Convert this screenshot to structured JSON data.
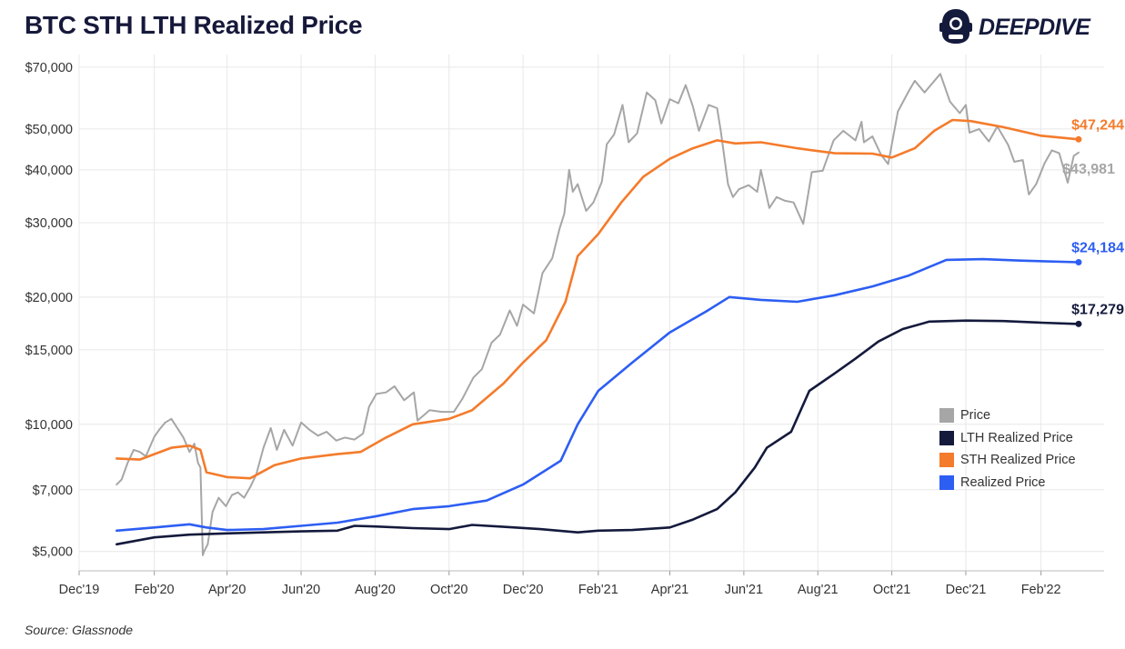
{
  "header": {
    "title": "BTC STH LTH Realized Price"
  },
  "logo": {
    "text": "DEEPDIVE",
    "icon": "diver-helmet-icon"
  },
  "footer": {
    "source": "Source: Glassnode"
  },
  "colors": {
    "price": "#a6a6a6",
    "lth": "#141a3c",
    "sth": "#f47b2b",
    "realized": "#2d5ef3",
    "grid": "#e8e8e8"
  },
  "chart_data": {
    "type": "line",
    "title": "BTC STH LTH Realized Price",
    "y_scale": "log",
    "ylim": [
      4500,
      75000
    ],
    "xlim": [
      "2019-12-01",
      "2022-03-25"
    ],
    "grid": true,
    "legend_position": "right",
    "y_ticks": [
      {
        "value": 5000,
        "label": "$5,000"
      },
      {
        "value": 7000,
        "label": "$7,000"
      },
      {
        "value": 10000,
        "label": "$10,000"
      },
      {
        "value": 15000,
        "label": "$15,000"
      },
      {
        "value": 20000,
        "label": "$20,000"
      },
      {
        "value": 30000,
        "label": "$30,000"
      },
      {
        "value": 40000,
        "label": "$40,000"
      },
      {
        "value": 50000,
        "label": "$50,000"
      },
      {
        "value": 70000,
        "label": "$70,000"
      }
    ],
    "x_ticks": [
      {
        "date": "2019-12-01",
        "label": "Dec'19"
      },
      {
        "date": "2020-02-01",
        "label": "Feb'20"
      },
      {
        "date": "2020-04-01",
        "label": "Apr'20"
      },
      {
        "date": "2020-06-01",
        "label": "Jun'20"
      },
      {
        "date": "2020-08-01",
        "label": "Aug'20"
      },
      {
        "date": "2020-10-01",
        "label": "Oct'20"
      },
      {
        "date": "2020-12-01",
        "label": "Dec'20"
      },
      {
        "date": "2021-02-01",
        "label": "Feb'21"
      },
      {
        "date": "2021-04-01",
        "label": "Apr'21"
      },
      {
        "date": "2021-06-01",
        "label": "Jun'21"
      },
      {
        "date": "2021-08-01",
        "label": "Aug'21"
      },
      {
        "date": "2021-10-01",
        "label": "Oct'21"
      },
      {
        "date": "2021-12-01",
        "label": "Dec'21"
      },
      {
        "date": "2022-02-01",
        "label": "Feb'22"
      }
    ],
    "series": [
      {
        "name": "Price",
        "color": "#a6a6a6",
        "end_label": "$43,981",
        "points": [
          [
            "2020-01-01",
            7200
          ],
          [
            "2020-01-05",
            7400
          ],
          [
            "2020-01-10",
            8100
          ],
          [
            "2020-01-15",
            8700
          ],
          [
            "2020-01-20",
            8600
          ],
          [
            "2020-01-25",
            8400
          ],
          [
            "2020-02-01",
            9350
          ],
          [
            "2020-02-05",
            9700
          ],
          [
            "2020-02-10",
            10100
          ],
          [
            "2020-02-15",
            10300
          ],
          [
            "2020-02-20",
            9800
          ],
          [
            "2020-02-25",
            9300
          ],
          [
            "2020-03-01",
            8600
          ],
          [
            "2020-03-05",
            9000
          ],
          [
            "2020-03-08",
            8100
          ],
          [
            "2020-03-10",
            7900
          ],
          [
            "2020-03-12",
            4900
          ],
          [
            "2020-03-13",
            5000
          ],
          [
            "2020-03-16",
            5200
          ],
          [
            "2020-03-20",
            6200
          ],
          [
            "2020-03-25",
            6700
          ],
          [
            "2020-03-31",
            6400
          ],
          [
            "2020-04-05",
            6800
          ],
          [
            "2020-04-10",
            6900
          ],
          [
            "2020-04-15",
            6700
          ],
          [
            "2020-04-20",
            7100
          ],
          [
            "2020-04-25",
            7600
          ],
          [
            "2020-05-01",
            8800
          ],
          [
            "2020-05-07",
            9800
          ],
          [
            "2020-05-12",
            8700
          ],
          [
            "2020-05-18",
            9700
          ],
          [
            "2020-05-25",
            8900
          ],
          [
            "2020-06-01",
            10100
          ],
          [
            "2020-06-08",
            9700
          ],
          [
            "2020-06-15",
            9400
          ],
          [
            "2020-06-22",
            9600
          ],
          [
            "2020-06-30",
            9150
          ],
          [
            "2020-07-07",
            9300
          ],
          [
            "2020-07-15",
            9200
          ],
          [
            "2020-07-22",
            9500
          ],
          [
            "2020-07-27",
            11000
          ],
          [
            "2020-08-02",
            11800
          ],
          [
            "2020-08-10",
            11900
          ],
          [
            "2020-08-17",
            12300
          ],
          [
            "2020-08-25",
            11400
          ],
          [
            "2020-09-02",
            11900
          ],
          [
            "2020-09-05",
            10200
          ],
          [
            "2020-09-15",
            10800
          ],
          [
            "2020-09-25",
            10700
          ],
          [
            "2020-10-05",
            10700
          ],
          [
            "2020-10-12",
            11500
          ],
          [
            "2020-10-21",
            12900
          ],
          [
            "2020-10-28",
            13500
          ],
          [
            "2020-11-05",
            15600
          ],
          [
            "2020-11-12",
            16300
          ],
          [
            "2020-11-20",
            18600
          ],
          [
            "2020-11-26",
            17100
          ],
          [
            "2020-12-01",
            19200
          ],
          [
            "2020-12-10",
            18300
          ],
          [
            "2020-12-17",
            22800
          ],
          [
            "2020-12-25",
            24700
          ],
          [
            "2020-12-31",
            29000
          ],
          [
            "2021-01-04",
            31500
          ],
          [
            "2021-01-08",
            40000
          ],
          [
            "2021-01-11",
            35500
          ],
          [
            "2021-01-15",
            37000
          ],
          [
            "2021-01-22",
            32000
          ],
          [
            "2021-01-28",
            33500
          ],
          [
            "2021-02-04",
            37500
          ],
          [
            "2021-02-08",
            46000
          ],
          [
            "2021-02-14",
            48500
          ],
          [
            "2021-02-21",
            57000
          ],
          [
            "2021-02-26",
            46500
          ],
          [
            "2021-03-05",
            48800
          ],
          [
            "2021-03-13",
            61000
          ],
          [
            "2021-03-20",
            58500
          ],
          [
            "2021-03-25",
            51500
          ],
          [
            "2021-04-01",
            58800
          ],
          [
            "2021-04-08",
            57500
          ],
          [
            "2021-04-14",
            63500
          ],
          [
            "2021-04-20",
            56500
          ],
          [
            "2021-04-25",
            49500
          ],
          [
            "2021-05-03",
            57000
          ],
          [
            "2021-05-10",
            56000
          ],
          [
            "2021-05-13",
            49500
          ],
          [
            "2021-05-19",
            37000
          ],
          [
            "2021-05-23",
            34500
          ],
          [
            "2021-05-28",
            36000
          ],
          [
            "2021-06-05",
            36800
          ],
          [
            "2021-06-12",
            35500
          ],
          [
            "2021-06-15",
            40000
          ],
          [
            "2021-06-22",
            32500
          ],
          [
            "2021-06-28",
            34500
          ],
          [
            "2021-07-05",
            33800
          ],
          [
            "2021-07-12",
            33500
          ],
          [
            "2021-07-20",
            29800
          ],
          [
            "2021-07-27",
            39500
          ],
          [
            "2021-08-05",
            39800
          ],
          [
            "2021-08-14",
            47000
          ],
          [
            "2021-08-22",
            49500
          ],
          [
            "2021-09-01",
            47000
          ],
          [
            "2021-09-06",
            52000
          ],
          [
            "2021-09-08",
            46500
          ],
          [
            "2021-09-15",
            48000
          ],
          [
            "2021-09-22",
            43500
          ],
          [
            "2021-09-28",
            41300
          ],
          [
            "2021-10-06",
            55000
          ],
          [
            "2021-10-15",
            61500
          ],
          [
            "2021-10-20",
            65000
          ],
          [
            "2021-10-28",
            61000
          ],
          [
            "2021-11-08",
            66500
          ],
          [
            "2021-11-10",
            67500
          ],
          [
            "2021-11-18",
            58000
          ],
          [
            "2021-11-26",
            54500
          ],
          [
            "2021-12-01",
            57000
          ],
          [
            "2021-12-04",
            49000
          ],
          [
            "2021-12-12",
            50000
          ],
          [
            "2021-12-20",
            46700
          ],
          [
            "2021-12-27",
            50700
          ],
          [
            "2022-01-05",
            45800
          ],
          [
            "2022-01-10",
            41800
          ],
          [
            "2022-01-17",
            42200
          ],
          [
            "2022-01-22",
            35000
          ],
          [
            "2022-01-28",
            37000
          ],
          [
            "2022-02-04",
            41500
          ],
          [
            "2022-02-10",
            44500
          ],
          [
            "2022-02-16",
            43800
          ],
          [
            "2022-02-23",
            37300
          ],
          [
            "2022-02-28",
            43200
          ],
          [
            "2022-03-04",
            43981
          ]
        ]
      },
      {
        "name": "LTH Realized Price",
        "color": "#141a3c",
        "end_label": "$17,279",
        "points": [
          [
            "2020-01-01",
            5200
          ],
          [
            "2020-02-01",
            5400
          ],
          [
            "2020-03-01",
            5480
          ],
          [
            "2020-04-01",
            5520
          ],
          [
            "2020-05-01",
            5550
          ],
          [
            "2020-06-01",
            5580
          ],
          [
            "2020-07-01",
            5600
          ],
          [
            "2020-07-15",
            5750
          ],
          [
            "2020-08-01",
            5730
          ],
          [
            "2020-09-01",
            5680
          ],
          [
            "2020-10-01",
            5650
          ],
          [
            "2020-10-20",
            5780
          ],
          [
            "2020-11-15",
            5720
          ],
          [
            "2020-12-15",
            5650
          ],
          [
            "2021-01-15",
            5550
          ],
          [
            "2021-02-01",
            5600
          ],
          [
            "2021-03-01",
            5620
          ],
          [
            "2021-04-01",
            5700
          ],
          [
            "2021-04-20",
            5950
          ],
          [
            "2021-05-10",
            6300
          ],
          [
            "2021-05-25",
            6900
          ],
          [
            "2021-06-10",
            7900
          ],
          [
            "2021-06-20",
            8800
          ],
          [
            "2021-07-10",
            9600
          ],
          [
            "2021-07-25",
            12000
          ],
          [
            "2021-08-15",
            13200
          ],
          [
            "2021-09-01",
            14300
          ],
          [
            "2021-09-20",
            15700
          ],
          [
            "2021-10-10",
            16800
          ],
          [
            "2021-11-01",
            17500
          ],
          [
            "2021-12-01",
            17600
          ],
          [
            "2022-01-01",
            17550
          ],
          [
            "2022-02-01",
            17400
          ],
          [
            "2022-03-04",
            17279
          ]
        ]
      },
      {
        "name": "STH Realized Price",
        "color": "#f47b2b",
        "end_label": "$47,244",
        "points": [
          [
            "2020-01-01",
            8300
          ],
          [
            "2020-01-20",
            8250
          ],
          [
            "2020-02-15",
            8800
          ],
          [
            "2020-03-01",
            8900
          ],
          [
            "2020-03-10",
            8700
          ],
          [
            "2020-03-15",
            7700
          ],
          [
            "2020-04-01",
            7500
          ],
          [
            "2020-04-20",
            7450
          ],
          [
            "2020-05-10",
            8000
          ],
          [
            "2020-06-01",
            8300
          ],
          [
            "2020-07-01",
            8500
          ],
          [
            "2020-07-20",
            8600
          ],
          [
            "2020-08-10",
            9300
          ],
          [
            "2020-09-01",
            10000
          ],
          [
            "2020-10-01",
            10300
          ],
          [
            "2020-10-20",
            10800
          ],
          [
            "2020-11-15",
            12500
          ],
          [
            "2020-12-01",
            14000
          ],
          [
            "2020-12-20",
            15800
          ],
          [
            "2021-01-05",
            19500
          ],
          [
            "2021-01-15",
            25000
          ],
          [
            "2021-02-01",
            28200
          ],
          [
            "2021-02-20",
            33500
          ],
          [
            "2021-03-10",
            38500
          ],
          [
            "2021-04-01",
            42500
          ],
          [
            "2021-04-20",
            45000
          ],
          [
            "2021-05-10",
            47000
          ],
          [
            "2021-05-25",
            46200
          ],
          [
            "2021-06-15",
            46500
          ],
          [
            "2021-07-15",
            45000
          ],
          [
            "2021-08-15",
            43800
          ],
          [
            "2021-09-15",
            43700
          ],
          [
            "2021-10-01",
            42800
          ],
          [
            "2021-10-20",
            45000
          ],
          [
            "2021-11-05",
            49500
          ],
          [
            "2021-11-20",
            52500
          ],
          [
            "2021-12-05",
            52200
          ],
          [
            "2022-01-01",
            50500
          ],
          [
            "2022-02-01",
            48200
          ],
          [
            "2022-03-04",
            47244
          ]
        ]
      },
      {
        "name": "Realized Price",
        "color": "#2d5ef3",
        "end_label": "$24,184",
        "points": [
          [
            "2020-01-01",
            5600
          ],
          [
            "2020-02-01",
            5700
          ],
          [
            "2020-03-01",
            5800
          ],
          [
            "2020-03-15",
            5700
          ],
          [
            "2020-04-01",
            5620
          ],
          [
            "2020-05-01",
            5650
          ],
          [
            "2020-06-01",
            5750
          ],
          [
            "2020-07-01",
            5850
          ],
          [
            "2020-08-01",
            6050
          ],
          [
            "2020-09-01",
            6300
          ],
          [
            "2020-10-01",
            6400
          ],
          [
            "2020-11-01",
            6600
          ],
          [
            "2020-12-01",
            7200
          ],
          [
            "2021-01-01",
            8200
          ],
          [
            "2021-01-15",
            10000
          ],
          [
            "2021-02-01",
            12000
          ],
          [
            "2021-03-01",
            14000
          ],
          [
            "2021-04-01",
            16500
          ],
          [
            "2021-05-01",
            18500
          ],
          [
            "2021-05-20",
            20000
          ],
          [
            "2021-06-15",
            19700
          ],
          [
            "2021-07-15",
            19500
          ],
          [
            "2021-08-15",
            20200
          ],
          [
            "2021-09-15",
            21200
          ],
          [
            "2021-10-15",
            22500
          ],
          [
            "2021-11-15",
            24500
          ],
          [
            "2021-12-15",
            24600
          ],
          [
            "2022-01-15",
            24400
          ],
          [
            "2022-03-04",
            24184
          ]
        ]
      }
    ]
  }
}
